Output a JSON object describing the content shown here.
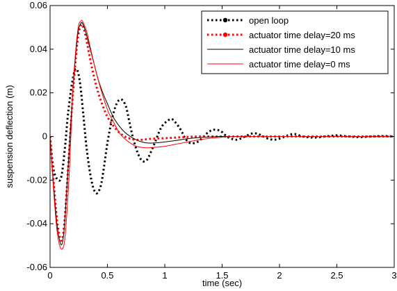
{
  "chart_data": {
    "type": "line",
    "title": "",
    "xlabel": "time (sec)",
    "ylabel": "suspension deflection (m)",
    "xlim": [
      0,
      3
    ],
    "ylim": [
      -0.06,
      0.06
    ],
    "x_ticks": [
      0,
      0.5,
      1,
      1.5,
      2,
      2.5,
      3
    ],
    "x_tick_labels": [
      "0",
      "0.5",
      "1",
      "1.5",
      "2",
      "2.5",
      "3"
    ],
    "y_ticks": [
      -0.06,
      -0.04,
      -0.02,
      0,
      0.02,
      0.04,
      0.06
    ],
    "y_tick_labels": [
      "-0.06",
      "-0.04",
      "-0.02",
      "0",
      "0.02",
      "0.04",
      "0.06"
    ],
    "grid": false,
    "legend_position": "top-right",
    "series": [
      {
        "name": "open loop",
        "color": "#000000",
        "style": "dotted-thick",
        "x": [
          0,
          0.03,
          0.07,
          0.1,
          0.13,
          0.16,
          0.2,
          0.23,
          0.26,
          0.29,
          0.32,
          0.36,
          0.4,
          0.44,
          0.47,
          0.5,
          0.54,
          0.58,
          0.62,
          0.66,
          0.69,
          0.72,
          0.76,
          0.8,
          0.84,
          0.88,
          0.92,
          0.95,
          0.98,
          1.02,
          1.06,
          1.1,
          1.14,
          1.18,
          1.22,
          1.26,
          1.3,
          1.34,
          1.38,
          1.42,
          1.46,
          1.5,
          1.54,
          1.58,
          1.62,
          1.66,
          1.7,
          1.74,
          1.78,
          1.82,
          1.86,
          1.9,
          1.95,
          2.0,
          2.05,
          2.1,
          2.15,
          2.2,
          2.3,
          2.4,
          2.5,
          2.6,
          2.7,
          2.8,
          2.9,
          3.0
        ],
        "y": [
          0,
          -0.015,
          -0.02,
          -0.018,
          -0.005,
          0.012,
          0.027,
          0.031,
          0.025,
          0.01,
          -0.006,
          -0.02,
          -0.026,
          -0.023,
          -0.014,
          -0.003,
          0.008,
          0.015,
          0.017,
          0.014,
          0.007,
          0.0,
          -0.007,
          -0.011,
          -0.011,
          -0.007,
          -0.002,
          0.002,
          0.005,
          0.007,
          0.008,
          0.006,
          0.003,
          -0.001,
          -0.003,
          -0.003,
          -0.002,
          0.0,
          0.002,
          0.003,
          0.003,
          0.002,
          0.0,
          -0.001,
          -0.0015,
          -0.001,
          0.0,
          0.001,
          0.0015,
          0.001,
          0.0,
          -0.001,
          -0.0015,
          -0.001,
          0.0,
          0.001,
          0.001,
          0.0,
          -0.0005,
          0.0,
          0.0005,
          0.0,
          -0.0003,
          0.0,
          0.0002,
          0.0
        ]
      },
      {
        "name": "actuator time delay=20 ms",
        "color": "#ff0000",
        "style": "dotted-thick",
        "x": [
          0,
          0.03,
          0.06,
          0.09,
          0.11,
          0.13,
          0.16,
          0.2,
          0.24,
          0.27,
          0.29,
          0.31,
          0.34,
          0.38,
          0.42,
          0.46,
          0.5,
          0.55,
          0.6,
          0.65,
          0.7,
          0.75,
          0.8,
          0.9,
          1.0,
          1.1,
          1.2,
          1.3,
          1.5,
          1.7,
          2.0,
          2.5,
          3.0
        ],
        "y": [
          0,
          -0.02,
          -0.038,
          -0.047,
          -0.046,
          -0.036,
          -0.012,
          0.02,
          0.044,
          0.051,
          0.05,
          0.046,
          0.038,
          0.028,
          0.02,
          0.014,
          0.009,
          0.005,
          0.002,
          0.0,
          -0.001,
          -0.0015,
          -0.0015,
          -0.001,
          -0.0008,
          -0.0005,
          -0.0002,
          0.0,
          0.0,
          0.0,
          0.0,
          0.0,
          0.0
        ]
      },
      {
        "name": "actuator time delay=10 ms",
        "color": "#000000",
        "style": "solid-thin",
        "x": [
          0,
          0.03,
          0.06,
          0.09,
          0.11,
          0.13,
          0.16,
          0.2,
          0.24,
          0.27,
          0.29,
          0.31,
          0.34,
          0.38,
          0.42,
          0.46,
          0.5,
          0.55,
          0.6,
          0.65,
          0.7,
          0.75,
          0.8,
          0.85,
          0.9,
          0.95,
          1.0,
          1.1,
          1.2,
          1.3,
          1.4,
          1.5,
          1.7,
          2.0,
          2.5,
          3.0
        ],
        "y": [
          0,
          -0.022,
          -0.04,
          -0.049,
          -0.048,
          -0.038,
          -0.012,
          0.022,
          0.046,
          0.052,
          0.051,
          0.048,
          0.042,
          0.034,
          0.026,
          0.02,
          0.015,
          0.009,
          0.005,
          0.002,
          0.0,
          -0.0015,
          -0.0025,
          -0.003,
          -0.003,
          -0.0028,
          -0.0025,
          -0.0018,
          -0.001,
          -0.0005,
          -0.0002,
          0.0,
          0.0,
          0.0,
          0.0,
          0.0
        ]
      },
      {
        "name": "actuator time delay=0 ms",
        "color": "#ff0000",
        "style": "solid-thin",
        "x": [
          0,
          0.03,
          0.06,
          0.09,
          0.12,
          0.14,
          0.17,
          0.2,
          0.24,
          0.27,
          0.29,
          0.32,
          0.35,
          0.39,
          0.43,
          0.47,
          0.51,
          0.55,
          0.6,
          0.65,
          0.7,
          0.75,
          0.8,
          0.85,
          0.9,
          0.95,
          1.0,
          1.05,
          1.1,
          1.2,
          1.3,
          1.4,
          1.5,
          1.6,
          1.8,
          2.0,
          2.5,
          3.0
        ],
        "y": [
          0,
          -0.024,
          -0.043,
          -0.051,
          -0.05,
          -0.04,
          -0.014,
          0.022,
          0.048,
          0.053,
          0.052,
          0.048,
          0.041,
          0.032,
          0.024,
          0.017,
          0.011,
          0.007,
          0.002,
          -0.001,
          -0.003,
          -0.0045,
          -0.005,
          -0.0052,
          -0.005,
          -0.0048,
          -0.0045,
          -0.004,
          -0.0035,
          -0.0025,
          -0.0015,
          -0.0008,
          -0.0003,
          0.0,
          0.0,
          0.0,
          0.0,
          0.0
        ]
      }
    ]
  }
}
